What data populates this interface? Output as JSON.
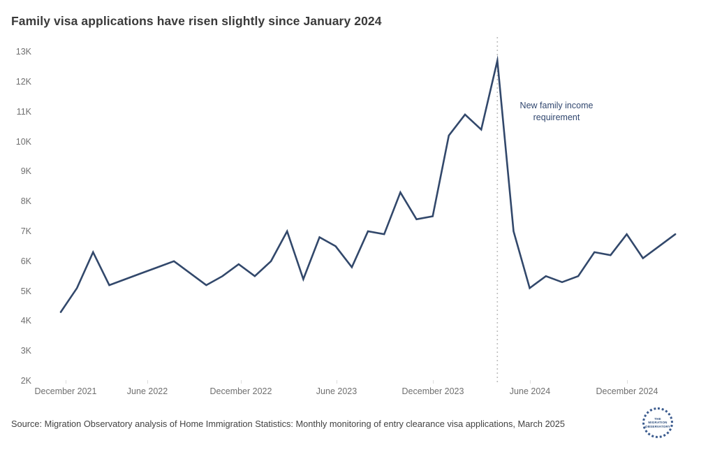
{
  "title": "Family visa applications have risen slightly since January 2024",
  "footer": {
    "source": "Source: Migration Observatory analysis of Home Immigration Statistics: Monthly monitoring of entry clearance visa applications, March 2025"
  },
  "annotation": {
    "lines": [
      "New family income",
      "requirement"
    ]
  },
  "logo": {
    "line1": "THE",
    "line2": "MIGRATION",
    "line3": "OBSERVATORY"
  },
  "colors": {
    "line": "#32486b",
    "dotted_line": "#bdbdbd",
    "annotation": "#31476f",
    "title": "#3a3a3a",
    "axis_label": "#6f6f6f",
    "footer": "#424242",
    "logo": "#2d4d7c",
    "background": "#ffffff"
  },
  "chart_data": {
    "type": "line",
    "title": "Family visa applications have risen slightly since January 2024",
    "x": [
      "Dec 2021",
      "Jan 2022",
      "Feb 2022",
      "Mar 2022",
      "Apr 2022",
      "May 2022",
      "Jun 2022",
      "Jul 2022",
      "Aug 2022",
      "Sep 2022",
      "Oct 2022",
      "Nov 2022",
      "Dec 2022",
      "Jan 2023",
      "Feb 2023",
      "Mar 2023",
      "Apr 2023",
      "May 2023",
      "Jun 2023",
      "Jul 2023",
      "Aug 2023",
      "Sep 2023",
      "Oct 2023",
      "Nov 2023",
      "Dec 2023",
      "Jan 2024",
      "Feb 2024",
      "Mar 2024",
      "Apr 2024",
      "May 2024",
      "Jun 2024",
      "Jul 2024",
      "Aug 2024",
      "Sep 2024",
      "Oct 2024",
      "Nov 2024",
      "Dec 2024",
      "Jan 2025",
      "Feb 2025"
    ],
    "values": [
      4.3,
      5.1,
      6.3,
      5.2,
      5.4,
      5.6,
      5.8,
      6.0,
      5.6,
      5.2,
      5.5,
      5.9,
      5.5,
      6.0,
      7.0,
      5.4,
      6.8,
      6.5,
      5.8,
      7.0,
      6.9,
      8.3,
      7.4,
      7.5,
      10.2,
      10.9,
      10.4,
      12.7,
      7.0,
      5.1,
      5.5,
      5.3,
      5.5,
      6.3,
      6.2,
      6.9,
      6.1,
      6.5,
      6.9
    ],
    "unit": "thousands of applications (K)",
    "ylim": [
      2,
      13
    ],
    "y_tick_labels": [
      "13K",
      "12K",
      "11K",
      "10K",
      "9K",
      "8K",
      "7K",
      "6K",
      "5K",
      "4K",
      "3K",
      "2K"
    ],
    "y_tick_values": [
      13,
      12,
      11,
      10,
      9,
      8,
      7,
      6,
      5,
      4,
      3,
      2
    ],
    "x_tick_labels": [
      "December 2021",
      "June 2022",
      "December 2022",
      "June 2023",
      "December 2023",
      "June 2024",
      "December 2024"
    ],
    "grid": "off",
    "legend": "none",
    "event_line": {
      "label": "New family income requirement",
      "month": "Mar 2024",
      "month_index": 27,
      "style": "vertical-dotted"
    }
  }
}
